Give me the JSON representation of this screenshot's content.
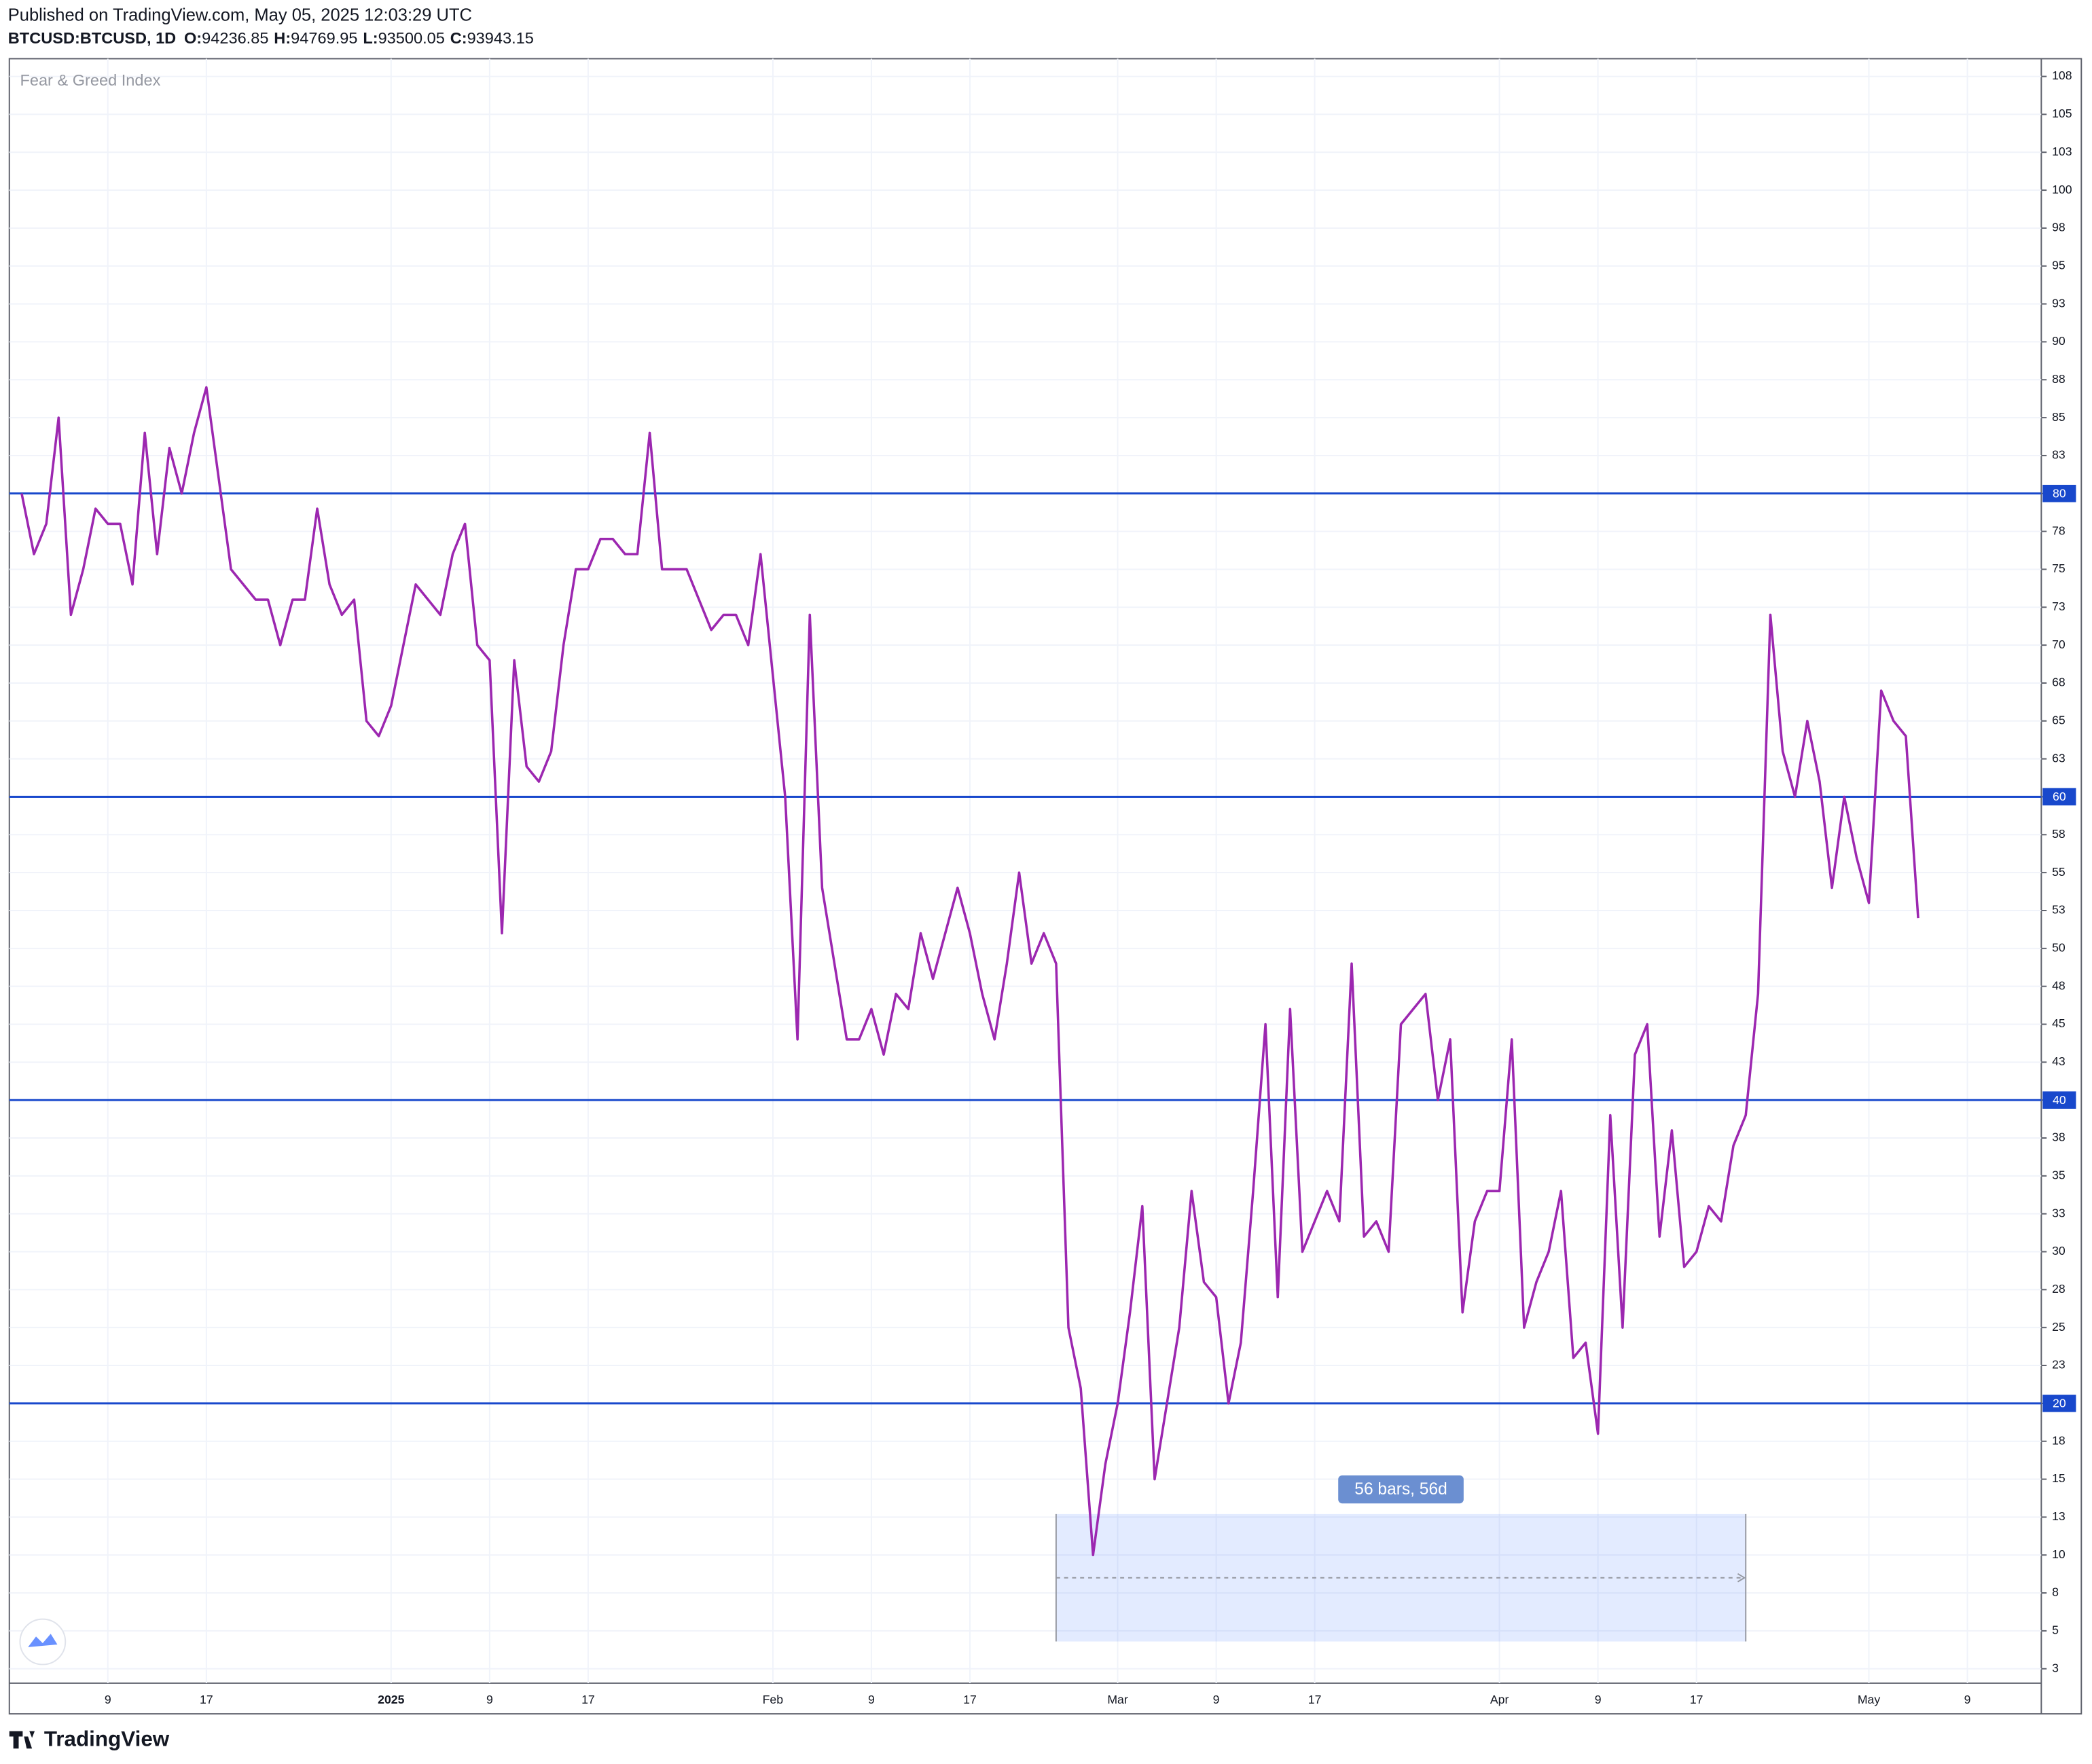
{
  "header": {
    "published": "Published on TradingView.com, May 05, 2025 12:03:29 UTC",
    "symbol": "BTCUSD:BTCUSD, 1D",
    "ohlc": [
      {
        "label": "O:",
        "value": "94236.85"
      },
      {
        "label": "H:",
        "value": "94769.95"
      },
      {
        "label": "L:",
        "value": "93500.05"
      },
      {
        "label": "C:",
        "value": "93943.15"
      }
    ]
  },
  "chart_data": {
    "type": "line",
    "title": "Fear & Greed Index",
    "x": [
      "2024-12-02",
      "2024-12-03",
      "2024-12-04",
      "2024-12-05",
      "2024-12-06",
      "2024-12-07",
      "2024-12-08",
      "2024-12-09",
      "2024-12-10",
      "2024-12-11",
      "2024-12-12",
      "2024-12-13",
      "2024-12-14",
      "2024-12-15",
      "2024-12-16",
      "2024-12-17",
      "2024-12-18",
      "2024-12-19",
      "2024-12-20",
      "2024-12-21",
      "2024-12-22",
      "2024-12-23",
      "2024-12-24",
      "2024-12-25",
      "2024-12-26",
      "2024-12-27",
      "2024-12-28",
      "2024-12-29",
      "2024-12-30",
      "2024-12-31",
      "2025-01-01",
      "2025-01-02",
      "2025-01-03",
      "2025-01-04",
      "2025-01-05",
      "2025-01-06",
      "2025-01-07",
      "2025-01-08",
      "2025-01-09",
      "2025-01-10",
      "2025-01-11",
      "2025-01-12",
      "2025-01-13",
      "2025-01-14",
      "2025-01-15",
      "2025-01-16",
      "2025-01-17",
      "2025-01-18",
      "2025-01-19",
      "2025-01-20",
      "2025-01-21",
      "2025-01-22",
      "2025-01-23",
      "2025-01-24",
      "2025-01-25",
      "2025-01-26",
      "2025-01-27",
      "2025-01-28",
      "2025-01-29",
      "2025-01-30",
      "2025-01-31",
      "2025-02-01",
      "2025-02-02",
      "2025-02-03",
      "2025-02-04",
      "2025-02-05",
      "2025-02-06",
      "2025-02-07",
      "2025-02-08",
      "2025-02-09",
      "2025-02-10",
      "2025-02-11",
      "2025-02-12",
      "2025-02-13",
      "2025-02-14",
      "2025-02-15",
      "2025-02-16",
      "2025-02-17",
      "2025-02-18",
      "2025-02-19",
      "2025-02-20",
      "2025-02-21",
      "2025-02-22",
      "2025-02-23",
      "2025-02-24",
      "2025-02-25",
      "2025-02-26",
      "2025-02-27",
      "2025-02-28",
      "2025-03-01",
      "2025-03-02",
      "2025-03-03",
      "2025-03-04",
      "2025-03-05",
      "2025-03-06",
      "2025-03-07",
      "2025-03-08",
      "2025-03-09",
      "2025-03-10",
      "2025-03-11",
      "2025-03-12",
      "2025-03-13",
      "2025-03-14",
      "2025-03-15",
      "2025-03-16",
      "2025-03-17",
      "2025-03-18",
      "2025-03-19",
      "2025-03-20",
      "2025-03-21",
      "2025-03-22",
      "2025-03-23",
      "2025-03-24",
      "2025-03-25",
      "2025-03-26",
      "2025-03-27",
      "2025-03-28",
      "2025-03-29",
      "2025-03-30",
      "2025-03-31",
      "2025-04-01",
      "2025-04-02",
      "2025-04-03",
      "2025-04-04",
      "2025-04-05",
      "2025-04-06",
      "2025-04-07",
      "2025-04-08",
      "2025-04-09",
      "2025-04-10",
      "2025-04-11",
      "2025-04-12",
      "2025-04-13",
      "2025-04-14",
      "2025-04-15",
      "2025-04-16",
      "2025-04-17",
      "2025-04-18",
      "2025-04-19",
      "2025-04-20",
      "2025-04-21",
      "2025-04-22",
      "2025-04-23",
      "2025-04-24",
      "2025-04-25",
      "2025-04-26",
      "2025-04-27",
      "2025-04-28",
      "2025-04-29",
      "2025-04-30",
      "2025-05-01",
      "2025-05-02",
      "2025-05-03",
      "2025-05-04",
      "2025-05-05"
    ],
    "series": [
      {
        "name": "Fear & Greed Index",
        "color": "#9c27b0",
        "values": [
          80,
          76,
          78,
          85,
          72,
          75,
          79,
          78,
          78,
          74,
          84,
          76,
          83,
          80,
          84,
          87,
          81,
          75,
          74,
          73,
          73,
          70,
          73,
          73,
          79,
          74,
          72,
          73,
          65,
          64,
          66,
          70,
          74,
          73,
          72,
          76,
          78,
          70,
          69,
          51,
          69,
          62,
          61,
          63,
          70,
          75,
          75,
          77,
          77,
          76,
          76,
          84,
          75,
          75,
          75,
          73,
          71,
          72,
          72,
          70,
          76,
          68,
          60,
          44,
          72,
          54,
          49,
          44,
          44,
          46,
          43,
          47,
          46,
          51,
          48,
          51,
          54,
          51,
          47,
          44,
          49,
          55,
          49,
          51,
          49,
          25,
          21,
          10,
          16,
          20,
          26,
          33,
          15,
          20,
          25,
          34,
          28,
          27,
          20,
          24,
          34,
          45,
          27,
          46,
          30,
          32,
          34,
          32,
          49,
          31,
          32,
          30,
          45,
          46,
          47,
          40,
          44,
          26,
          32,
          34,
          34,
          44,
          25,
          28,
          30,
          34,
          23,
          24,
          18,
          39,
          25,
          43,
          45,
          31,
          38,
          29,
          30,
          33,
          32,
          37,
          39,
          47,
          72,
          63,
          60,
          65,
          61,
          54,
          60,
          56,
          53,
          67,
          65,
          64,
          52
        ]
      }
    ],
    "xlim": [
      "2024-12-01",
      "2025-05-15"
    ],
    "xticks": [
      {
        "value": "2024-12-09",
        "label": "9"
      },
      {
        "value": "2024-12-17",
        "label": "17"
      },
      {
        "value": "2025-01-01",
        "label": "2025"
      },
      {
        "value": "2025-01-09",
        "label": "9"
      },
      {
        "value": "2025-01-17",
        "label": "17"
      },
      {
        "value": "2025-02-01",
        "label": "Feb"
      },
      {
        "value": "2025-02-09",
        "label": "9"
      },
      {
        "value": "2025-02-17",
        "label": "17"
      },
      {
        "value": "2025-03-01",
        "label": "Mar"
      },
      {
        "value": "2025-03-09",
        "label": "9"
      },
      {
        "value": "2025-03-17",
        "label": "17"
      },
      {
        "value": "2025-04-01",
        "label": "Apr"
      },
      {
        "value": "2025-04-09",
        "label": "9"
      },
      {
        "value": "2025-04-17",
        "label": "17"
      },
      {
        "value": "2025-05-01",
        "label": "May"
      },
      {
        "value": "2025-05-09",
        "label": "9"
      }
    ],
    "ylim": [
      1.55,
      108.67
    ],
    "yticks": [
      {
        "value": 2.5,
        "label": "3"
      },
      5,
      {
        "value": 7.5,
        "label": "8"
      },
      10,
      {
        "value": 12.5,
        "label": "13"
      },
      15,
      {
        "value": 17.5,
        "label": "18"
      },
      20,
      {
        "value": 22.5,
        "label": "23"
      },
      25,
      {
        "value": 27.5,
        "label": "28"
      },
      30,
      {
        "value": 32.5,
        "label": "33"
      },
      35,
      {
        "value": 37.5,
        "label": "38"
      },
      40,
      {
        "value": 42.5,
        "label": "43"
      },
      45,
      {
        "value": 47.5,
        "label": "48"
      },
      50,
      {
        "value": 52.5,
        "label": "53"
      },
      55,
      {
        "value": 57.5,
        "label": "58"
      },
      60,
      {
        "value": 62.5,
        "label": "63"
      },
      65,
      {
        "value": 67.5,
        "label": "68"
      },
      70,
      {
        "value": 72.5,
        "label": "73"
      },
      75,
      {
        "value": 77.5,
        "label": "78"
      },
      80,
      {
        "value": 82.5,
        "label": "83"
      },
      85,
      {
        "value": 87.5,
        "label": "88"
      },
      90,
      {
        "value": 92.5,
        "label": "93"
      },
      95,
      {
        "value": 97.5,
        "label": "98"
      },
      100,
      {
        "value": 102.5,
        "label": "103"
      },
      105,
      {
        "value": 107.5,
        "label": "108"
      }
    ],
    "grid": true,
    "hlines": {
      "color": "#1848cc",
      "values": [
        80,
        60,
        40,
        20
      ]
    },
    "range": {
      "label": "56 bars, 56d",
      "x": [
        "2025-02-24",
        "2025-04-21"
      ],
      "y": [
        4.3,
        12.7
      ]
    }
  },
  "footer": {
    "brand": "TradingView"
  }
}
